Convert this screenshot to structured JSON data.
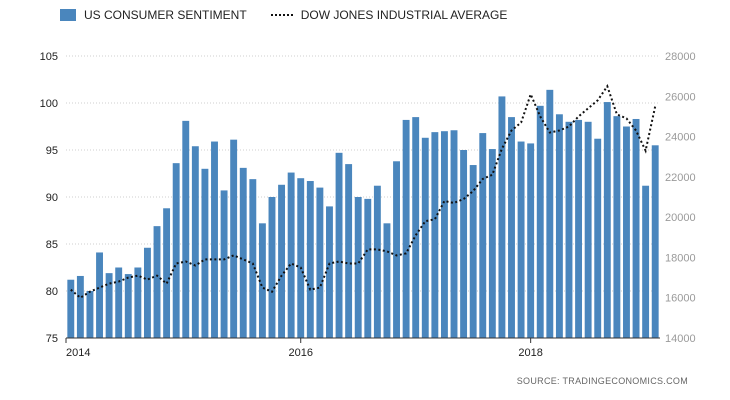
{
  "chart_data": {
    "type": "bar",
    "legend": [
      {
        "name": "US CONSUMER SENTIMENT",
        "kind": "bar",
        "color": "#4a86bd"
      },
      {
        "name": "DOW JONES INDUSTRIAL AVERAGE",
        "kind": "line",
        "style": "dotted",
        "color": "#111111"
      }
    ],
    "x_tick_labels": [
      "2014",
      "2016",
      "2018"
    ],
    "y_left": {
      "min": 75,
      "max": 105,
      "ticks": [
        75,
        80,
        85,
        90,
        95,
        100,
        105
      ]
    },
    "y_right": {
      "min": 14000,
      "max": 28000,
      "ticks": [
        14000,
        16000,
        18000,
        20000,
        22000,
        24000,
        26000,
        28000
      ]
    },
    "grid": true,
    "series": [
      {
        "name": "US CONSUMER SENTIMENT",
        "axis": "left",
        "type": "bar",
        "color": "#4a86bd",
        "values": [
          81.2,
          81.6,
          80.0,
          84.1,
          81.9,
          82.5,
          81.8,
          82.5,
          84.6,
          86.9,
          88.8,
          93.6,
          98.1,
          95.4,
          93.0,
          95.9,
          90.7,
          96.1,
          93.1,
          91.9,
          87.2,
          90.0,
          91.3,
          92.6,
          92.0,
          91.7,
          91.0,
          89.0,
          94.7,
          93.5,
          90.0,
          89.8,
          91.2,
          87.2,
          93.8,
          98.2,
          98.5,
          96.3,
          96.9,
          97.0,
          97.1,
          95.0,
          93.4,
          96.8,
          95.1,
          100.7,
          98.5,
          95.9,
          95.7,
          99.7,
          101.4,
          98.8,
          98.0,
          98.2,
          98.0,
          96.2,
          100.1,
          98.6,
          97.5,
          98.3,
          91.2,
          95.5
        ]
      },
      {
        "name": "DOW JONES INDUSTRIAL AVERAGE",
        "axis": "right",
        "type": "line",
        "style": "dotted",
        "color": "#111111",
        "values": [
          16400,
          16000,
          16300,
          16500,
          16700,
          16800,
          17000,
          17100,
          16900,
          17100,
          16700,
          17700,
          17800,
          17600,
          17900,
          17900,
          17900,
          18100,
          17900,
          17700,
          16500,
          16300,
          17100,
          17700,
          17500,
          16400,
          16500,
          17700,
          17800,
          17700,
          17700,
          18400,
          18400,
          18300,
          18100,
          18200,
          19100,
          19800,
          19900,
          20800,
          20700,
          20900,
          21300,
          21900,
          22100,
          23400,
          24300,
          24700,
          26100,
          25000,
          24200,
          24300,
          24500,
          25000,
          25400,
          25800,
          26500,
          25100,
          24900,
          24300,
          23300,
          25500
        ]
      }
    ]
  },
  "footer": {
    "source": "SOURCE:  TRADINGECONOMICS.COM"
  }
}
